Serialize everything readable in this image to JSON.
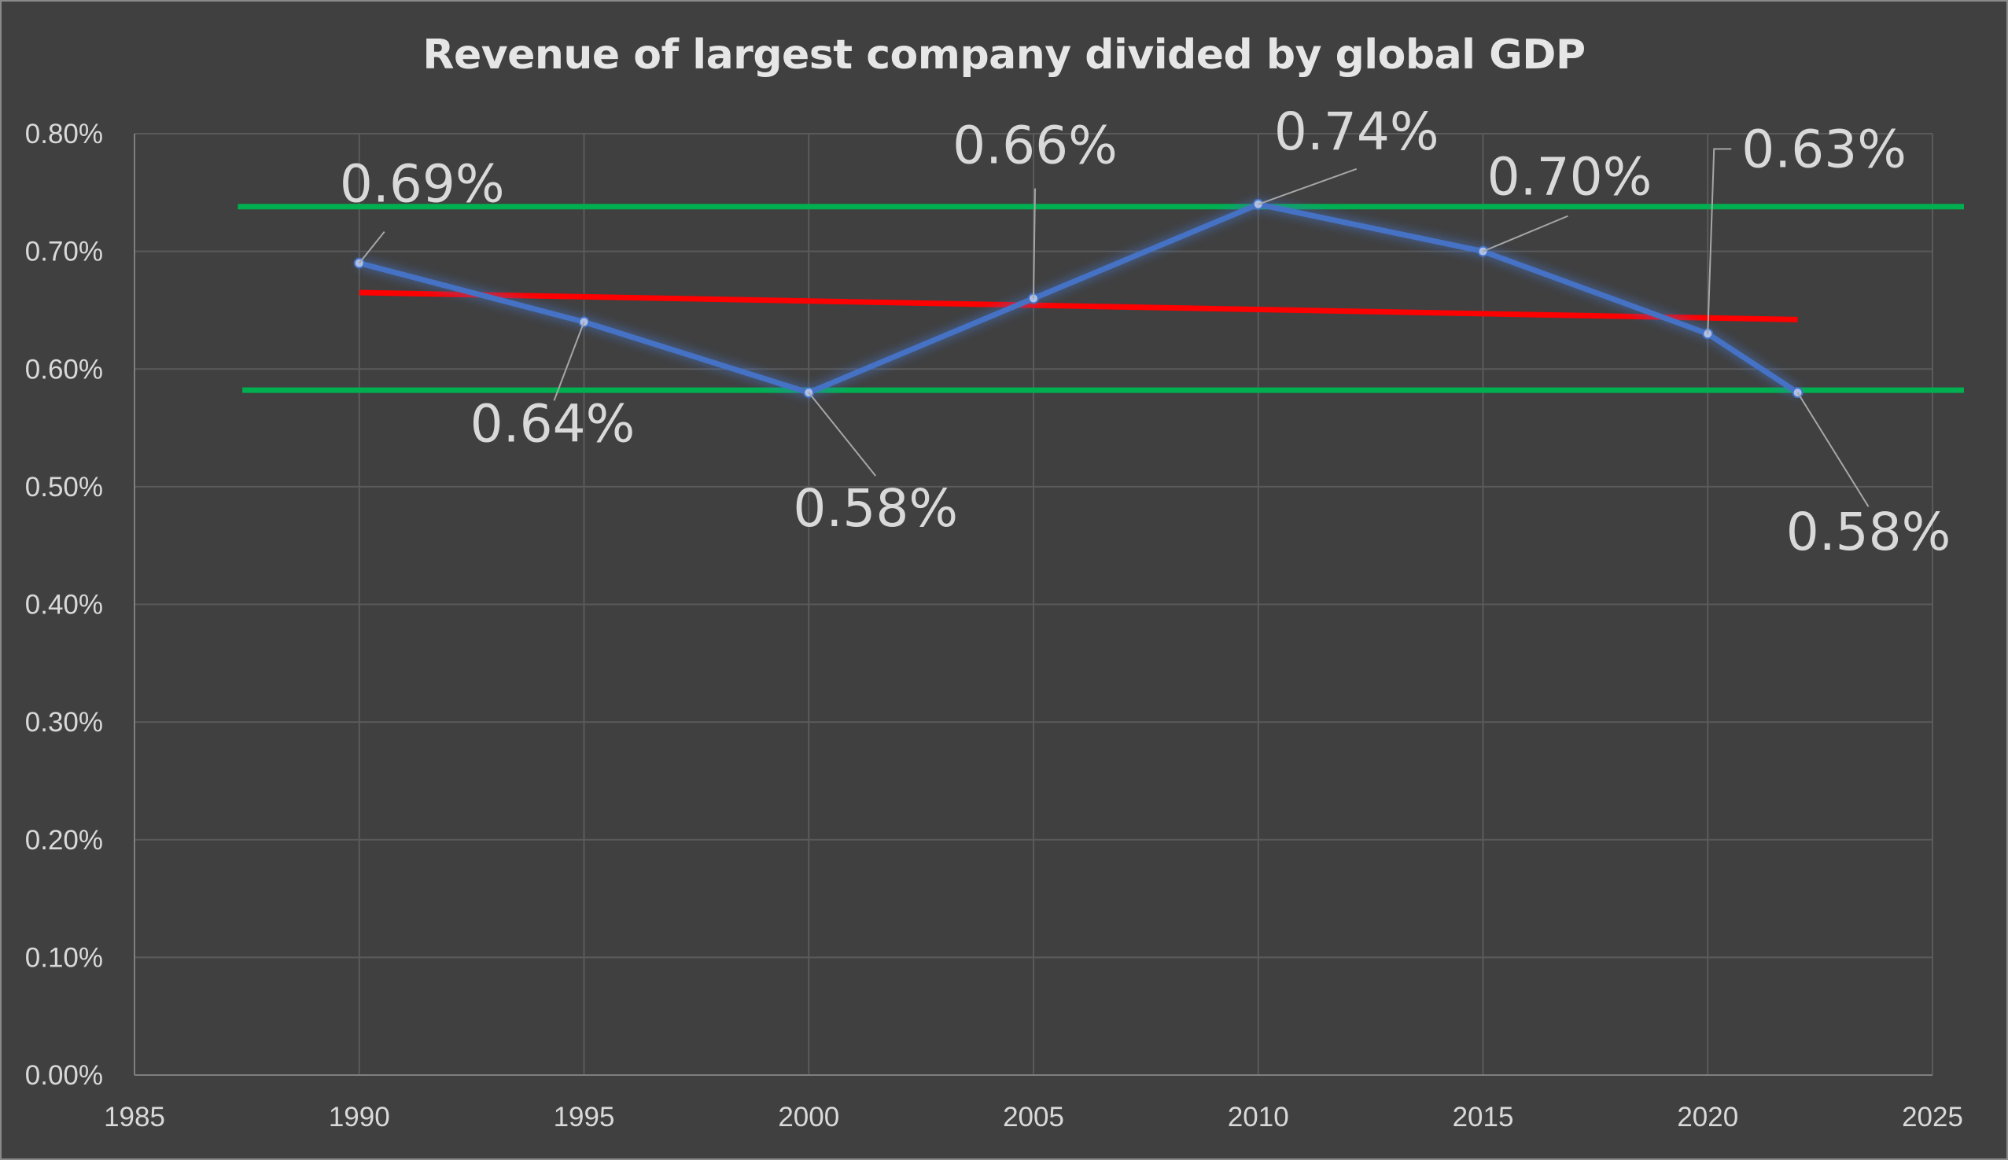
{
  "chart_data": {
    "type": "line",
    "title": "Revenue of largest company divided by global GDP",
    "xlabel": "",
    "ylabel": "",
    "xlim": [
      1985,
      2025
    ],
    "ylim": [
      0.0,
      0.008
    ],
    "x_ticks": [
      "1985",
      "1990",
      "1995",
      "2000",
      "2005",
      "2010",
      "2015",
      "2020",
      "2025"
    ],
    "y_ticks": [
      "0.00%",
      "0.10%",
      "0.20%",
      "0.30%",
      "0.40%",
      "0.50%",
      "0.60%",
      "0.70%",
      "0.80%"
    ],
    "grid": true,
    "legend": "none",
    "series": [
      {
        "x": [
          1990,
          1995,
          2000,
          2005,
          2010,
          2015,
          2020,
          2022
        ],
        "y": [
          0.0069,
          0.0064,
          0.0058,
          0.0066,
          0.0074,
          0.007,
          0.0063,
          0.0058
        ],
        "labels": [
          "0.69%",
          "0.64%",
          "0.58%",
          "0.66%",
          "0.74%",
          "0.70%",
          "0.63%",
          "0.58%"
        ],
        "color": "#4472c4"
      }
    ],
    "reference_lines": [
      {
        "kind": "trend",
        "x": [
          1990,
          2022
        ],
        "y": [
          0.00665,
          0.00642
        ],
        "color": "#ff0000"
      },
      {
        "kind": "upper",
        "x": [
          1987.3,
          2025.7
        ],
        "y": [
          0.00738,
          0.00738
        ],
        "color": "#00b050"
      },
      {
        "kind": "lower",
        "x": [
          1987.4,
          2025.7
        ],
        "y": [
          0.00582,
          0.00582
        ],
        "color": "#00b050"
      }
    ],
    "colors": {
      "background": "#404040",
      "grid": "#5a5a5a",
      "text": "#d9d9d9"
    }
  }
}
